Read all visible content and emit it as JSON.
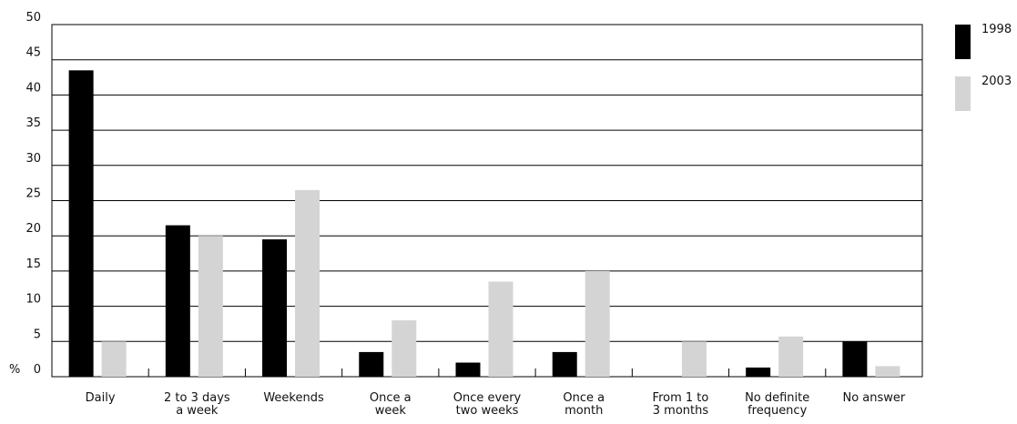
{
  "chart_data": {
    "type": "bar",
    "title": "",
    "xlabel": "",
    "ylabel": "%",
    "ylim": [
      0,
      50
    ],
    "yticks": [
      0,
      5,
      10,
      15,
      20,
      25,
      30,
      35,
      40,
      45,
      50
    ],
    "grid": true,
    "legend_position": "top-right",
    "categories": [
      [
        "Daily"
      ],
      [
        "2 to 3 days",
        "a week"
      ],
      [
        "Weekends"
      ],
      [
        "Once a",
        "week"
      ],
      [
        "Once every",
        "two weeks"
      ],
      [
        "Once a",
        "month"
      ],
      [
        "From 1 to",
        "3 months"
      ],
      [
        "No definite",
        "frequency"
      ],
      [
        "No answer"
      ]
    ],
    "series": [
      {
        "name": "1998",
        "color": "#000000",
        "values": [
          43.5,
          21.5,
          19.5,
          3.5,
          2.0,
          3.5,
          0,
          1.3,
          5.0
        ]
      },
      {
        "name": "2003",
        "color": "#d4d4d4",
        "values": [
          5.0,
          20.0,
          26.5,
          8.0,
          13.5,
          15.0,
          5.0,
          5.7,
          1.5
        ]
      }
    ]
  }
}
